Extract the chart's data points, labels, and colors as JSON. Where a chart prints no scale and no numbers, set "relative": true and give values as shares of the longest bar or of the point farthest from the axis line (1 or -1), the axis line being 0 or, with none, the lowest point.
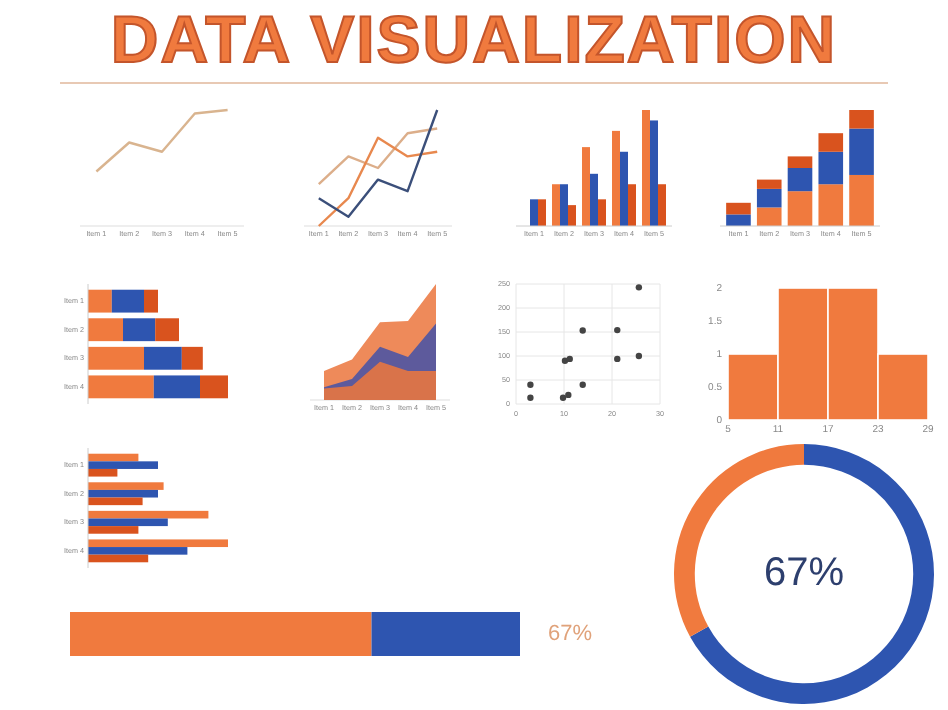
{
  "chart_data": [
    {
      "type": "other",
      "title": "DATA VISUALIZATION"
    },
    {
      "type": "line",
      "relative": true,
      "categories": [
        "Item 1",
        "Item 2",
        "Item 3",
        "Item 4",
        "Item 5"
      ],
      "series": [
        {
          "color": "#d9b48f",
          "values": [
            0.47,
            0.72,
            0.64,
            0.97,
            1
          ]
        }
      ]
    },
    {
      "type": "line",
      "relative": true,
      "categories": [
        "Item 1",
        "Item 2",
        "Item 3",
        "Item 4",
        "Item 5"
      ],
      "series": [
        {
          "color": "#dcae8a",
          "values": [
            0.36,
            0.6,
            0.5,
            0.8,
            0.84
          ]
        },
        {
          "color": "#e8884e",
          "values": [
            0,
            0.24,
            0.76,
            0.6,
            0.64
          ]
        },
        {
          "color": "#3b4f7a",
          "values": [
            0.24,
            0.08,
            0.4,
            0.3,
            1
          ]
        }
      ]
    },
    {
      "type": "bar",
      "relative": true,
      "categories": [
        "Item 1",
        "Item 2",
        "Item 3",
        "Item 4",
        "Item 5"
      ],
      "series": [
        {
          "color": "#f07a3e",
          "values": [
            0,
            0.36,
            0.68,
            0.82,
            1
          ]
        },
        {
          "color": "#2e55b0",
          "values": [
            0.23,
            0.36,
            0.45,
            0.64,
            0.91
          ]
        },
        {
          "color": "#d9531e",
          "values": [
            0.23,
            0.18,
            0.23,
            0.36,
            0.36
          ]
        }
      ]
    },
    {
      "type": "bar",
      "relative": true,
      "stacked": true,
      "categories": [
        "Item 1",
        "Item 2",
        "Item 3",
        "Item 4",
        "Item 5"
      ],
      "series": [
        {
          "color": "#f07a3e",
          "values": [
            0,
            0.16,
            0.3,
            0.36,
            0.44
          ]
        },
        {
          "color": "#2e55b0",
          "values": [
            0.1,
            0.16,
            0.2,
            0.28,
            0.4
          ]
        },
        {
          "color": "#d9531e",
          "values": [
            0.1,
            0.08,
            0.1,
            0.16,
            0.16
          ]
        }
      ]
    },
    {
      "type": "bar",
      "relative": true,
      "stacked": true,
      "orientation": "horizontal",
      "categories": [
        "Item 1",
        "Item 2",
        "Item 3",
        "Item 4"
      ],
      "series": [
        {
          "color": "#f07a3e",
          "values": [
            0.17,
            0.25,
            0.4,
            0.47
          ]
        },
        {
          "color": "#2e55b0",
          "values": [
            0.23,
            0.23,
            0.27,
            0.33
          ]
        },
        {
          "color": "#d9531e",
          "values": [
            0.1,
            0.17,
            0.15,
            0.2
          ]
        }
      ]
    },
    {
      "type": "area",
      "relative": true,
      "categories": [
        "Item 1",
        "Item 2",
        "Item 3",
        "Item 4",
        "Item 5"
      ],
      "series": [
        {
          "color": "#ee8a5a",
          "values": [
            0.25,
            0.35,
            0.67,
            0.68,
            1
          ]
        },
        {
          "color": "#5d5a9c",
          "values": [
            0.11,
            0.18,
            0.46,
            0.37,
            0.66
          ]
        },
        {
          "color": "#d9734a",
          "values": [
            0.1,
            0.12,
            0.33,
            0.25,
            0.25
          ]
        }
      ]
    },
    {
      "type": "scatter",
      "xlim": [
        0,
        30
      ],
      "ylim": [
        0,
        250
      ],
      "xticks": [
        0,
        10,
        20,
        30
      ],
      "yticks": [
        0,
        50,
        100,
        150,
        200,
        250
      ],
      "grid": true,
      "marker": "circle",
      "series": [
        {
          "color": "#444444",
          "x": [
            25.6,
            3,
            3,
            9.8,
            10.9,
            13.9,
            10.2,
            11.2,
            13.9,
            21.1,
            21.1,
            25.6
          ],
          "values": [
            243,
            40,
            13,
            13,
            19,
            40,
            90,
            94,
            153,
            154,
            94,
            100
          ]
        }
      ]
    },
    {
      "type": "histogram",
      "bins": [
        5,
        11,
        17,
        23,
        29
      ],
      "values": [
        1,
        2,
        2,
        1
      ],
      "color": "#f07a3e",
      "xlim": [
        5,
        29
      ],
      "ylim": [
        0,
        2
      ],
      "xticks": [
        5,
        11,
        17,
        23,
        29
      ],
      "yticks": [
        0,
        0.5,
        1,
        1.5,
        2
      ]
    },
    {
      "type": "bar",
      "relative": true,
      "orientation": "horizontal",
      "categories": [
        "Item 1",
        "Item 2",
        "Item 3",
        "Item 4"
      ],
      "series": [
        {
          "color": "#f07a3e",
          "values": [
            0.36,
            0.54,
            0.86,
            1
          ]
        },
        {
          "color": "#2e55b0",
          "values": [
            0.5,
            0.5,
            0.57,
            0.71
          ]
        },
        {
          "color": "#d9531e",
          "values": [
            0.21,
            0.39,
            0.36,
            0.43
          ]
        }
      ]
    },
    {
      "type": "bar",
      "relative": true,
      "stacked": true,
      "orientation": "horizontal",
      "categories": [
        null
      ],
      "annotations": [
        "67%"
      ],
      "series": [
        {
          "color": "#f07a3e",
          "values": [
            0.67
          ]
        },
        {
          "color": "#2e55b0",
          "values": [
            0.33
          ]
        }
      ]
    },
    {
      "type": "donut",
      "categories": [
        null,
        null
      ],
      "values": [
        67,
        33
      ],
      "colors": [
        "#2e55b0",
        "#f07a3e"
      ],
      "annotations": [
        "67%"
      ]
    }
  ]
}
